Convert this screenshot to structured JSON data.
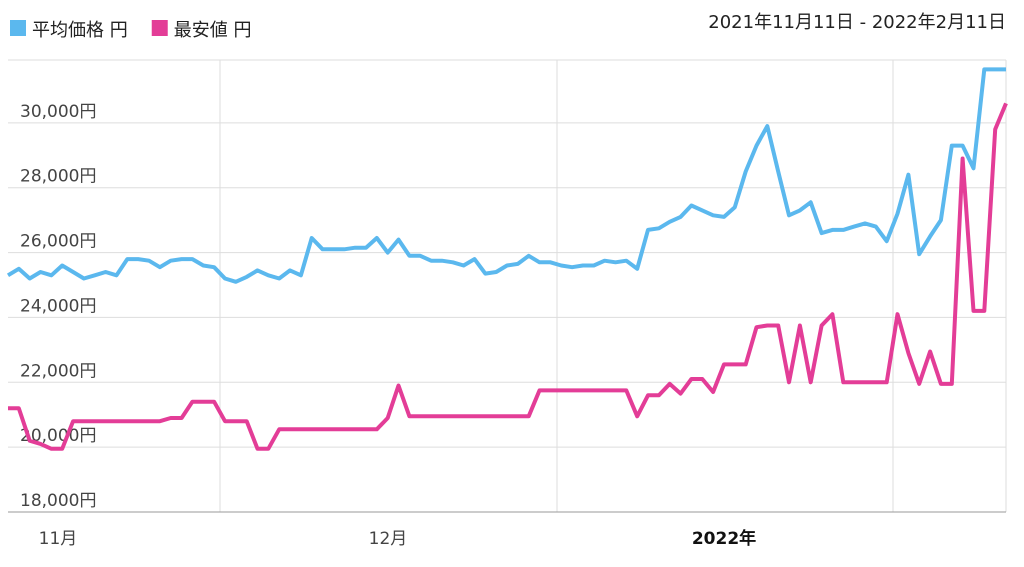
{
  "chart_data": {
    "type": "line",
    "date_range": "2021年11月11日 - 2022年2月11日",
    "x_labels": [
      "11月",
      "12月",
      "2022年"
    ],
    "ylim": [
      18000,
      32000
    ],
    "yticks": [
      {
        "value": 18000,
        "label": "18,000円"
      },
      {
        "value": 20000,
        "label": "20,000円"
      },
      {
        "value": 22000,
        "label": "22,000円"
      },
      {
        "value": 24000,
        "label": "24,000円"
      },
      {
        "value": 26000,
        "label": "26,000円"
      },
      {
        "value": 28000,
        "label": "28,000円"
      },
      {
        "value": 30000,
        "label": "30,000円"
      }
    ],
    "grid": true,
    "series": [
      {
        "name": "平均価格 円",
        "color": "#5bb8ee",
        "values": [
          25300,
          25500,
          25200,
          25400,
          25300,
          25600,
          25400,
          25200,
          25300,
          25400,
          25300,
          25800,
          25800,
          25750,
          25550,
          25750,
          25800,
          25800,
          25600,
          25550,
          25200,
          25100,
          25250,
          25450,
          25300,
          25200,
          25450,
          25300,
          26450,
          26100,
          26100,
          26100,
          26150,
          26150,
          26450,
          26000,
          26400,
          25900,
          25900,
          25750,
          25750,
          25700,
          25600,
          25800,
          25350,
          25400,
          25600,
          25650,
          25900,
          25700,
          25700,
          25600,
          25550,
          25600,
          25600,
          25750,
          25700,
          25750,
          25500,
          26700,
          26750,
          26950,
          27100,
          27450,
          27300,
          27150,
          27100,
          27400,
          28500,
          29300,
          29900,
          28500,
          27150,
          27300,
          27550,
          26600,
          26700,
          26700,
          26800,
          26900,
          26800,
          26350,
          27200,
          28400,
          25950,
          26500,
          27000,
          29300,
          29300,
          28600,
          31650,
          31650,
          31650
        ]
      },
      {
        "name": "最安値 円",
        "color": "#e33d97",
        "values": [
          21200,
          21200,
          20200,
          20100,
          19950,
          19950,
          20800,
          20800,
          20800,
          20800,
          20800,
          20800,
          20800,
          20800,
          20800,
          20900,
          20900,
          21400,
          21400,
          21400,
          20800,
          20800,
          20800,
          19950,
          19950,
          20550,
          20550,
          20550,
          20550,
          20550,
          20550,
          20550,
          20550,
          20550,
          20550,
          20900,
          21900,
          20950,
          20950,
          20950,
          20950,
          20950,
          20950,
          20950,
          20950,
          20950,
          20950,
          20950,
          20950,
          21750,
          21750,
          21750,
          21750,
          21750,
          21750,
          21750,
          21750,
          21750,
          20950,
          21600,
          21600,
          21950,
          21650,
          22100,
          22100,
          21700,
          22550,
          22550,
          22550,
          23700,
          23750,
          23750,
          22000,
          23750,
          22000,
          23750,
          24100,
          22000,
          22000,
          22000,
          22000,
          22000,
          24100,
          22900,
          21950,
          22950,
          21950,
          21950,
          28900,
          24200,
          24200,
          29800,
          30600
        ]
      }
    ]
  }
}
